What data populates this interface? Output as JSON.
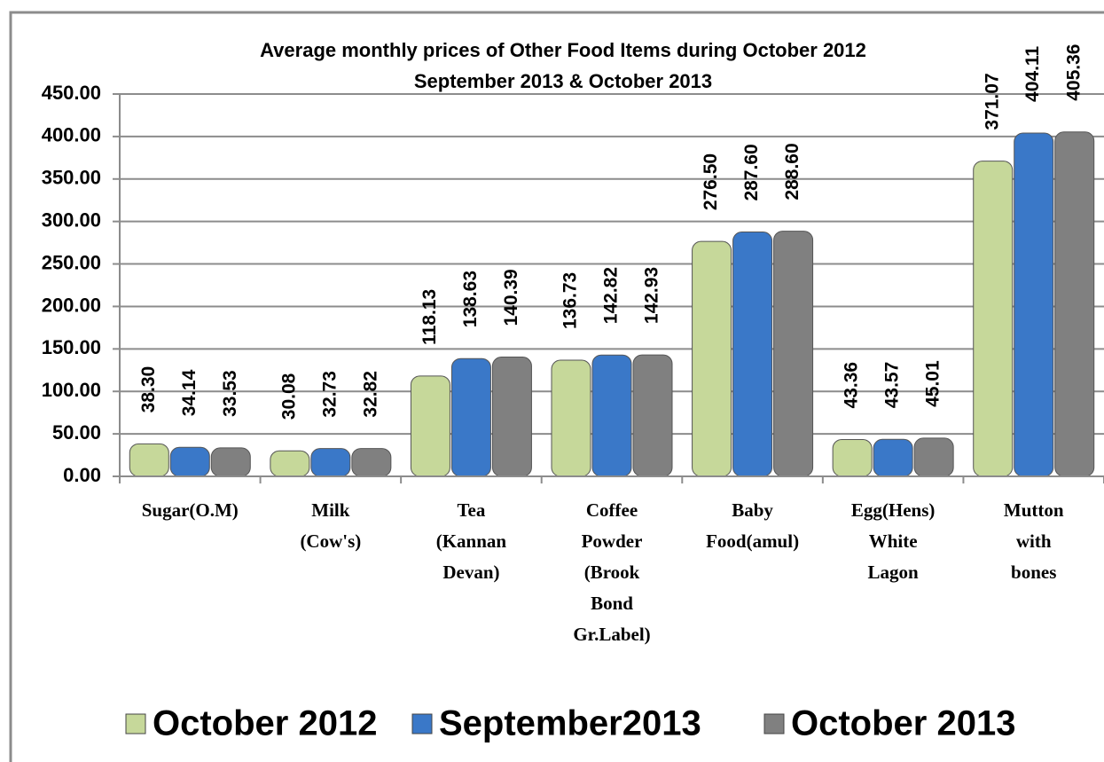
{
  "chart_data": {
    "type": "bar",
    "title": [
      "Average monthly prices of Other Food Items during  October  2012",
      "September 2013 & October 2013"
    ],
    "categories": [
      "Sugar(O.M)",
      "Milk (Cow's)",
      "Tea (Kannan Devan)",
      "Coffee Powder (Brook Bond Gr.Label)",
      "Baby Food(amul)",
      "Egg(Hens) White Lagon",
      "Mutton with bones"
    ],
    "series": [
      {
        "name": "October 2012",
        "color": "#c6d89a",
        "values": [
          38.3,
          30.08,
          118.13,
          136.73,
          276.5,
          43.36,
          371.07
        ],
        "value_labels": [
          "38.30",
          "30.08",
          "118.13",
          "136.73",
          "276.50",
          "43.36",
          "371.07"
        ]
      },
      {
        "name": "September2013",
        "color": "#3a78c8",
        "values": [
          34.14,
          32.73,
          138.63,
          142.82,
          287.6,
          43.57,
          404.11
        ],
        "value_labels": [
          "34.14",
          "32.73",
          "138.63",
          "142.82",
          "287.60",
          "43.57",
          "404.11"
        ]
      },
      {
        "name": "October 2013",
        "color": "#808080",
        "values": [
          33.53,
          32.82,
          140.39,
          142.93,
          288.6,
          45.01,
          405.36
        ],
        "value_labels": [
          "33.53",
          "32.82",
          "140.39",
          "142.93",
          "288.60",
          "45.01",
          "405.36"
        ]
      }
    ],
    "ylim": [
      0,
      450
    ],
    "yticks": [
      {
        "value": 0,
        "label": "0.00"
      },
      {
        "value": 50,
        "label": "50.00"
      },
      {
        "value": 100,
        "label": "100.00"
      },
      {
        "value": 150,
        "label": "150.00"
      },
      {
        "value": 200,
        "label": "200.00"
      },
      {
        "value": 250,
        "label": "250.00"
      },
      {
        "value": 300,
        "label": "300.00"
      },
      {
        "value": 350,
        "label": "350.00"
      },
      {
        "value": 400,
        "label": "400.00"
      },
      {
        "value": 450,
        "label": "450.00"
      }
    ],
    "grid": true,
    "legend": "bottom"
  }
}
